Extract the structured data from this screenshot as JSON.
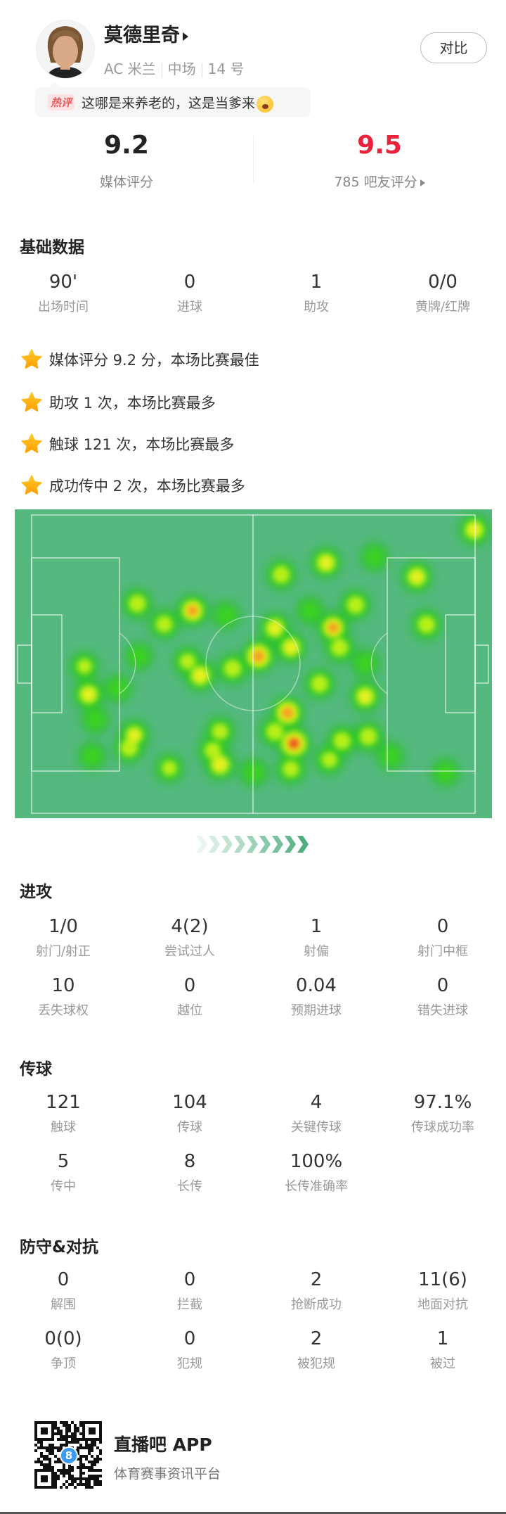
{
  "player": {
    "name": "莫德里奇",
    "team": "AC 米兰",
    "position": "中场",
    "number": "14 号",
    "compare_label": "对比"
  },
  "hot_comment": {
    "badge": "热评",
    "text": "这哪是来养老的，这是当爹来",
    "emoji": "crying-face"
  },
  "ratings": {
    "media_score": "9.2",
    "media_label": "媒体评分",
    "fan_score": "9.5",
    "fan_label": "785 吧友评分",
    "fan_score_color": "#e8233b"
  },
  "basic": {
    "title": "基础数据",
    "stats": [
      {
        "value": "90'",
        "label": "出场时间"
      },
      {
        "value": "0",
        "label": "进球"
      },
      {
        "value": "1",
        "label": "助攻"
      },
      {
        "value": "0/0",
        "label": "黄牌/红牌"
      }
    ]
  },
  "highlights": [
    {
      "icon": "star",
      "text": "媒体评分 9.2 分，本场比赛最佳"
    },
    {
      "icon": "star",
      "text": "助攻 1 次，本场比赛最多"
    },
    {
      "icon": "star",
      "text": "触球 121 次，本场比赛最多"
    },
    {
      "icon": "star",
      "text": "成功传中 2 次，本场比赛最多"
    }
  ],
  "heatmap": {
    "pitch_color": "#55b97f",
    "attack_direction": "right",
    "pitch_length_m": 105,
    "pitch_width_m": 68,
    "points": [
      [
        104.8,
        3.4,
        0.6
      ],
      [
        69.7,
        10.9,
        0.6
      ],
      [
        59.1,
        13.6,
        0.5
      ],
      [
        81.2,
        9.6,
        0.2
      ],
      [
        91.2,
        14.1,
        0.6
      ],
      [
        93.5,
        25.0,
        0.5
      ],
      [
        25.0,
        20.2,
        0.5
      ],
      [
        38.1,
        21.8,
        0.75
      ],
      [
        31.4,
        24.9,
        0.45
      ],
      [
        46.1,
        22.9,
        0.2
      ],
      [
        53.7,
        32.2,
        0.9
      ],
      [
        57.6,
        25.8,
        0.6
      ],
      [
        61.4,
        30.2,
        0.6
      ],
      [
        71.4,
        25.7,
        0.75
      ],
      [
        76.7,
        20.5,
        0.5
      ],
      [
        72.9,
        30.2,
        0.5
      ],
      [
        65.9,
        21.8,
        0.2
      ],
      [
        39.9,
        36.6,
        0.65
      ],
      [
        47.6,
        35.0,
        0.5
      ],
      [
        36.9,
        33.4,
        0.4
      ],
      [
        25.5,
        32.2,
        0.2
      ],
      [
        12.5,
        34.5,
        0.35
      ],
      [
        13.5,
        40.9,
        0.6
      ],
      [
        20.5,
        39.5,
        0.2
      ],
      [
        15.1,
        46.7,
        0.2
      ],
      [
        68.2,
        38.5,
        0.5
      ],
      [
        79.0,
        41.4,
        0.6
      ],
      [
        60.6,
        45.1,
        0.85
      ],
      [
        62.1,
        52.1,
        1.0
      ],
      [
        57.6,
        49.4,
        0.5
      ],
      [
        61.4,
        57.9,
        0.45
      ],
      [
        73.5,
        51.5,
        0.5
      ],
      [
        79.7,
        50.5,
        0.5
      ],
      [
        70.5,
        55.8,
        0.4
      ],
      [
        24.3,
        50.2,
        0.55
      ],
      [
        23.1,
        53.1,
        0.5
      ],
      [
        14.3,
        55.0,
        0.2
      ],
      [
        32.6,
        57.7,
        0.35
      ],
      [
        44.6,
        56.9,
        0.65
      ],
      [
        44.6,
        49.4,
        0.45
      ],
      [
        42.9,
        53.7,
        0.45
      ],
      [
        52.6,
        58.7,
        0.2
      ],
      [
        85.0,
        55.0,
        0.2
      ],
      [
        98.0,
        58.7,
        0.2
      ],
      [
        79.0,
        33.8,
        0.2
      ]
    ]
  },
  "attack": {
    "title": "进攻",
    "stats": [
      {
        "value": "1/0",
        "label": "射门/射正"
      },
      {
        "value": "4(2)",
        "label": "尝试过人"
      },
      {
        "value": "1",
        "label": "射偏"
      },
      {
        "value": "0",
        "label": "射门中框"
      },
      {
        "value": "10",
        "label": "丢失球权"
      },
      {
        "value": "0",
        "label": "越位"
      },
      {
        "value": "0.04",
        "label": "预期进球"
      },
      {
        "value": "0",
        "label": "错失进球"
      }
    ]
  },
  "passing": {
    "title": "传球",
    "stats": [
      {
        "value": "121",
        "label": "触球"
      },
      {
        "value": "104",
        "label": "传球"
      },
      {
        "value": "4",
        "label": "关键传球"
      },
      {
        "value": "97.1%",
        "label": "传球成功率"
      },
      {
        "value": "5",
        "label": "传中"
      },
      {
        "value": "8",
        "label": "长传"
      },
      {
        "value": "100%",
        "label": "长传准确率"
      }
    ]
  },
  "defense": {
    "title": "防守&对抗",
    "stats": [
      {
        "value": "0",
        "label": "解围"
      },
      {
        "value": "0",
        "label": "拦截"
      },
      {
        "value": "2",
        "label": "抢断成功"
      },
      {
        "value": "11(6)",
        "label": "地面对抗"
      },
      {
        "value": "0(0)",
        "label": "争顶"
      },
      {
        "value": "0",
        "label": "犯规"
      },
      {
        "value": "2",
        "label": "被犯规"
      },
      {
        "value": "1",
        "label": "被过"
      }
    ]
  },
  "footer": {
    "app_name": "直播吧 APP",
    "tagline": "体育赛事资讯平台",
    "qr_badge": "8"
  }
}
